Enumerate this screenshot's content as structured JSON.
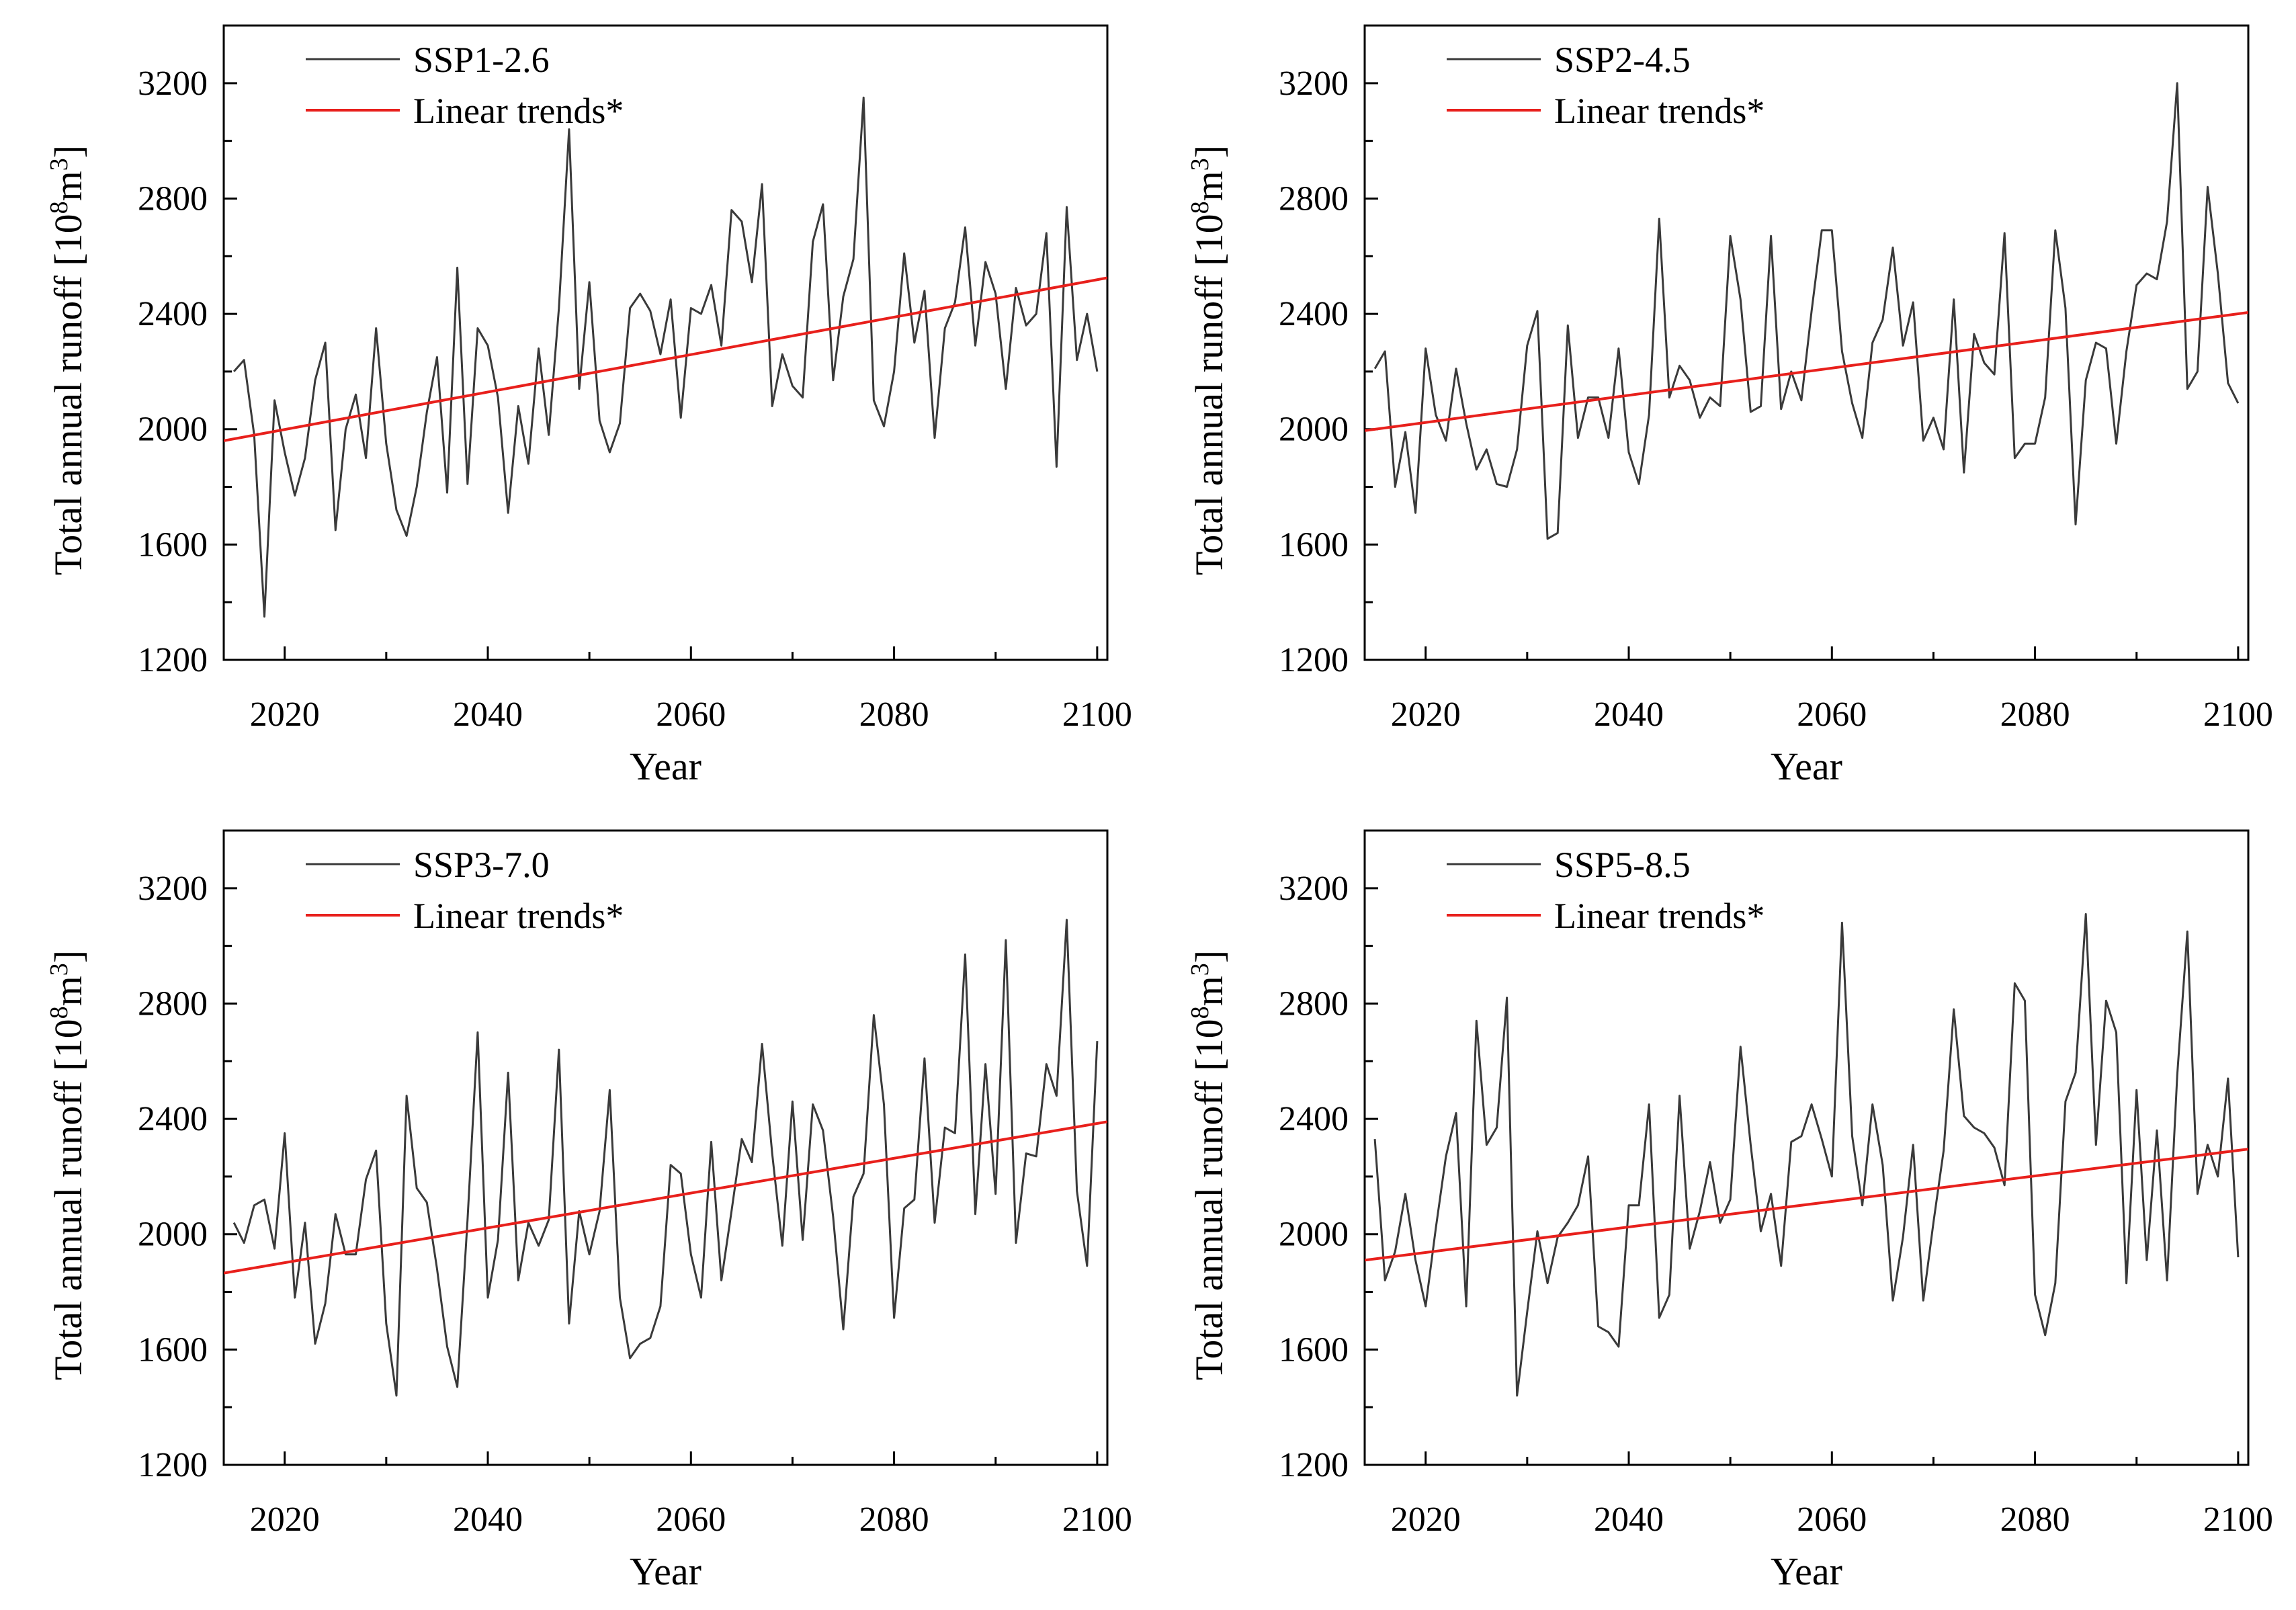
{
  "figure": {
    "colors": {
      "series": "#3a3a3a",
      "trend": "#e8201c",
      "axis": "#000000",
      "background": "#ffffff"
    }
  },
  "chart_data": [
    {
      "type": "line",
      "id": "ssp126",
      "legend_placement": "top-left",
      "xlabel": "Year",
      "ylabel_main": "Total annual runoff [10",
      "ylabel_sup8": "8",
      "ylabel_mid": "m",
      "ylabel_sup3": "3",
      "ylabel_end": "]",
      "xlim": [
        2014,
        2101
      ],
      "ylim": [
        1200,
        3400
      ],
      "xticks": [
        "2020",
        "2040",
        "2060",
        "2080",
        "2100"
      ],
      "yticks": [
        "1200",
        "1600",
        "2000",
        "2400",
        "2800",
        "3200"
      ],
      "series": [
        {
          "name": "SSP1-2.6",
          "x_start": 2015,
          "values": [
            2200,
            2240,
            1980,
            1350,
            2100,
            1920,
            1770,
            1900,
            2170,
            2300,
            1650,
            2000,
            2120,
            1900,
            2350,
            1950,
            1720,
            1630,
            1800,
            2060,
            2250,
            1780,
            2560,
            1810,
            2350,
            2290,
            2110,
            1710,
            2080,
            1880,
            2280,
            1980,
            2420,
            3040,
            2140,
            2510,
            2030,
            1920,
            2020,
            2420,
            2470,
            2410,
            2260,
            2450,
            2040,
            2420,
            2400,
            2500,
            2290,
            2760,
            2720,
            2510,
            2850,
            2080,
            2260,
            2150,
            2110,
            2650,
            2780,
            2170,
            2460,
            2590,
            3150,
            2100,
            2010,
            2200,
            2610,
            2300,
            2480,
            1970,
            2350,
            2440,
            2700,
            2290,
            2580,
            2470,
            2140,
            2490,
            2360,
            2400,
            2680,
            1870,
            2770,
            2240,
            2400,
            2200
          ]
        },
        {
          "name": "Linear trends*",
          "x": [
            2014,
            2101
          ],
          "values": [
            1960,
            2525
          ]
        }
      ]
    },
    {
      "type": "line",
      "id": "ssp245",
      "legend_placement": "top-left",
      "xlabel": "Year",
      "ylabel_main": "Total annual runoff [10",
      "ylabel_sup8": "8",
      "ylabel_mid": "m",
      "ylabel_sup3": "3",
      "ylabel_end": "]",
      "xlim": [
        2014,
        2101
      ],
      "ylim": [
        1200,
        3400
      ],
      "xticks": [
        "2020",
        "2040",
        "2060",
        "2080",
        "2100"
      ],
      "yticks": [
        "1200",
        "1600",
        "2000",
        "2400",
        "2800",
        "3200"
      ],
      "series": [
        {
          "name": "SSP2-4.5",
          "x_start": 2015,
          "values": [
            2210,
            2270,
            1800,
            1990,
            1710,
            2280,
            2050,
            1960,
            2210,
            2020,
            1860,
            1930,
            1810,
            1800,
            1930,
            2290,
            2410,
            1620,
            1640,
            2360,
            1970,
            2110,
            2110,
            1970,
            2280,
            1920,
            1810,
            2050,
            2730,
            2110,
            2220,
            2170,
            2040,
            2110,
            2080,
            2670,
            2450,
            2060,
            2080,
            2670,
            2070,
            2200,
            2100,
            2410,
            2690,
            2690,
            2270,
            2090,
            1970,
            2300,
            2380,
            2630,
            2290,
            2440,
            1960,
            2040,
            1930,
            2450,
            1850,
            2330,
            2230,
            2190,
            2680,
            1900,
            1950,
            1950,
            2110,
            2690,
            2420,
            1670,
            2170,
            2300,
            2280,
            1950,
            2270,
            2500,
            2540,
            2520,
            2720,
            3200,
            2140,
            2200,
            2840,
            2540,
            2160,
            2090
          ]
        },
        {
          "name": "Linear trends*",
          "x": [
            2014,
            2101
          ],
          "values": [
            1995,
            2405
          ]
        }
      ]
    },
    {
      "type": "line",
      "id": "ssp370",
      "legend_placement": "top-left",
      "xlabel": "Year",
      "ylabel_main": "Total annual runoff [10",
      "ylabel_sup8": "8",
      "ylabel_mid": "m",
      "ylabel_sup3": "3",
      "ylabel_end": "]",
      "xlim": [
        2014,
        2101
      ],
      "ylim": [
        1200,
        3400
      ],
      "xticks": [
        "2020",
        "2040",
        "2060",
        "2080",
        "2100"
      ],
      "yticks": [
        "1200",
        "1600",
        "2000",
        "2400",
        "2800",
        "3200"
      ],
      "series": [
        {
          "name": "SSP3-7.0",
          "x_start": 2015,
          "values": [
            2040,
            1970,
            2100,
            2120,
            1950,
            2350,
            1780,
            2040,
            1620,
            1760,
            2070,
            1930,
            1930,
            2190,
            2290,
            1690,
            1440,
            2480,
            2160,
            2110,
            1880,
            1610,
            1470,
            2050,
            2700,
            1780,
            1980,
            2560,
            1840,
            2040,
            1960,
            2050,
            2640,
            1690,
            2080,
            1930,
            2080,
            2500,
            1780,
            1570,
            1620,
            1640,
            1750,
            2240,
            2210,
            1930,
            1780,
            2320,
            1840,
            2080,
            2330,
            2250,
            2660,
            2280,
            1960,
            2460,
            1980,
            2450,
            2360,
            2060,
            1670,
            2130,
            2210,
            2760,
            2450,
            1710,
            2090,
            2120,
            2610,
            2040,
            2370,
            2350,
            2970,
            2070,
            2590,
            2140,
            3020,
            1970,
            2280,
            2270,
            2590,
            2480,
            3090,
            2150,
            1890,
            2670
          ]
        },
        {
          "name": "Linear trends*",
          "x": [
            2014,
            2101
          ],
          "values": [
            1865,
            2390
          ]
        }
      ]
    },
    {
      "type": "line",
      "id": "ssp585",
      "legend_placement": "top-left",
      "xlabel": "Year",
      "ylabel_main": "Total annual runoff [10",
      "ylabel_sup8": "8",
      "ylabel_mid": "m",
      "ylabel_sup3": "3",
      "ylabel_end": "]",
      "xlim": [
        2014,
        2101
      ],
      "ylim": [
        1200,
        3400
      ],
      "xticks": [
        "2020",
        "2040",
        "2060",
        "2080",
        "2100"
      ],
      "yticks": [
        "1200",
        "1600",
        "2000",
        "2400",
        "2800",
        "3200"
      ],
      "series": [
        {
          "name": "SSP5-8.5",
          "x_start": 2015,
          "values": [
            2330,
            1840,
            1940,
            2140,
            1910,
            1750,
            2020,
            2270,
            2420,
            1750,
            2740,
            2310,
            2370,
            2820,
            1440,
            1730,
            2010,
            1830,
            1990,
            2040,
            2100,
            2270,
            1680,
            1660,
            1610,
            2100,
            2100,
            2450,
            1710,
            1790,
            2480,
            1950,
            2080,
            2250,
            2040,
            2120,
            2650,
            2310,
            2010,
            2140,
            1890,
            2320,
            2340,
            2450,
            2330,
            2200,
            3080,
            2340,
            2100,
            2450,
            2240,
            1770,
            1990,
            2310,
            1770,
            2040,
            2290,
            2780,
            2410,
            2370,
            2350,
            2300,
            2170,
            2870,
            2810,
            1790,
            1650,
            1830,
            2460,
            2560,
            3110,
            2310,
            2810,
            2700,
            1830,
            2500,
            1910,
            2360,
            1840,
            2550,
            3050,
            2140,
            2310,
            2200,
            2540,
            1920
          ]
        },
        {
          "name": "Linear trends*",
          "x": [
            2014,
            2101
          ],
          "values": [
            1910,
            2295
          ]
        }
      ]
    }
  ]
}
